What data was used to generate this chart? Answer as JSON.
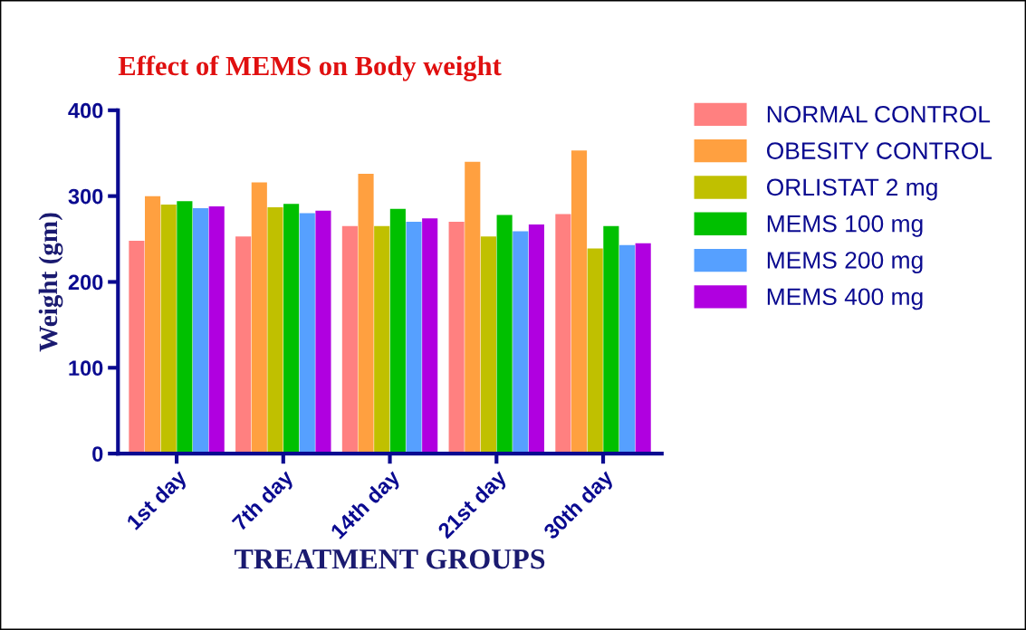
{
  "chart_data": {
    "type": "bar",
    "title": "Effect of MEMS on Body weight",
    "xlabel": "TREATMENT GROUPS",
    "ylabel": "Weight (gm)",
    "categories": [
      "1st day",
      "7th day",
      "14th day",
      "21st day",
      "30th day"
    ],
    "series": [
      {
        "name": "NORMAL CONTROL",
        "color": "#ff8080",
        "values": [
          248,
          253,
          265,
          270,
          279
        ]
      },
      {
        "name": "OBESITY CONTROL",
        "color": "#ffa040",
        "values": [
          300,
          316,
          326,
          340,
          353
        ]
      },
      {
        "name": "ORLISTAT 2 mg",
        "color": "#c0c000",
        "values": [
          290,
          287,
          265,
          253,
          239
        ]
      },
      {
        "name": "MEMS 100 mg",
        "color": "#00c000",
        "values": [
          294,
          291,
          285,
          278,
          265
        ]
      },
      {
        "name": "MEMS 200 mg",
        "color": "#56a0ff",
        "values": [
          286,
          280,
          270,
          259,
          243
        ]
      },
      {
        "name": "MEMS 400 mg",
        "color": "#b000e0",
        "values": [
          288,
          283,
          274,
          267,
          245
        ]
      }
    ],
    "ylim": [
      0,
      400
    ],
    "yticks": [
      0,
      100,
      200,
      300,
      400
    ],
    "legend": "right"
  }
}
